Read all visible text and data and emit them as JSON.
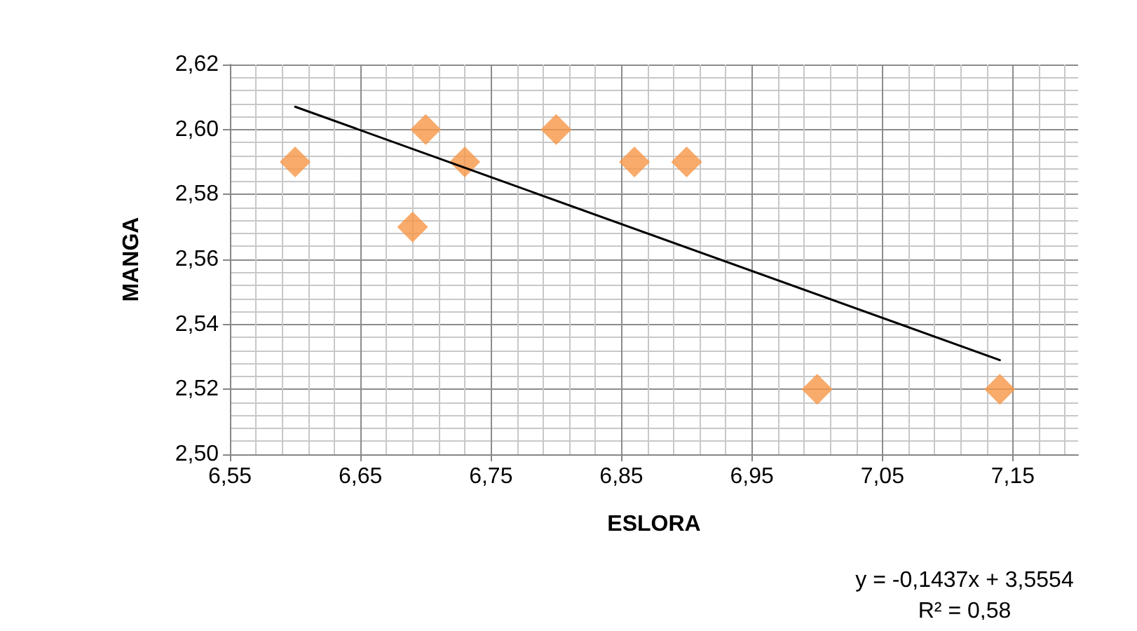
{
  "chart_data": {
    "type": "scatter",
    "xlabel": "ESLORA",
    "ylabel": "MANGA",
    "series": [
      {
        "color": "#f79646",
        "marker": "diamond",
        "x": [
          6.6,
          6.69,
          6.7,
          6.73,
          6.8,
          6.86,
          6.9,
          7.0,
          7.14
        ],
        "values": [
          2.59,
          2.57,
          2.6,
          2.59,
          2.6,
          2.59,
          2.59,
          2.52,
          2.52
        ]
      },
      {
        "type": "line",
        "color": "#000000",
        "marker": "none",
        "x": [
          6.6,
          7.14
        ],
        "values": [
          2.607,
          2.529
        ]
      }
    ],
    "xlim": [
      6.55,
      7.2
    ],
    "xticks": [
      {
        "value": 6.55,
        "label": "6,55"
      },
      {
        "value": 6.65,
        "label": "6,65"
      },
      {
        "value": 6.75,
        "label": "6,75"
      },
      {
        "value": 6.85,
        "label": "6,85"
      },
      {
        "value": 6.95,
        "label": "6,95"
      },
      {
        "value": 7.05,
        "label": "7,05"
      },
      {
        "value": 7.15,
        "label": "7,15"
      }
    ],
    "ylim": [
      2.5,
      2.62
    ],
    "yticks": [
      {
        "value": 2.5,
        "label": "2,50"
      },
      {
        "value": 2.52,
        "label": "2,52"
      },
      {
        "value": 2.54,
        "label": "2,54"
      },
      {
        "value": 2.56,
        "label": "2,56"
      },
      {
        "value": 2.58,
        "label": "2,58"
      },
      {
        "value": 2.6,
        "label": "2,60"
      },
      {
        "value": 2.62,
        "label": "2,62"
      }
    ],
    "annotations": [
      "y = -0,1437x + 3,5554",
      "R² = 0,58"
    ],
    "grid": true
  }
}
